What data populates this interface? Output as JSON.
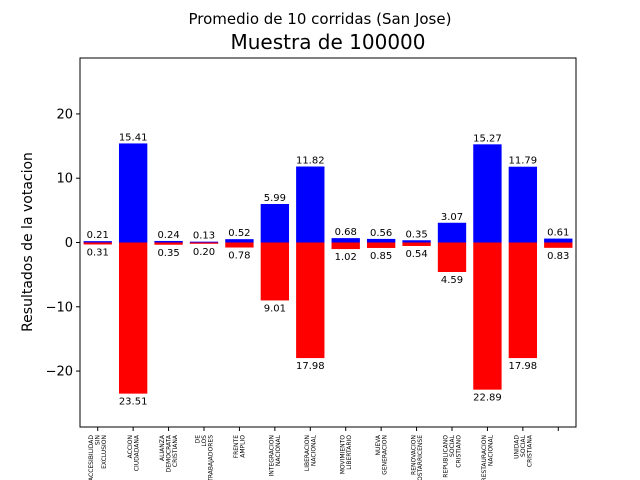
{
  "chart_data": {
    "type": "bar",
    "suptitle": "Promedio de 10 corridas (San Jose)",
    "title": "Muestra de 100000",
    "ylabel": "Resultados de la votacion",
    "xlabel": "",
    "ylim": [
      -28.7,
      28.7
    ],
    "yticks": [
      -20,
      -10,
      0,
      10,
      20
    ],
    "ytick_labels": [
      "−20",
      "−10",
      "0",
      "10",
      "20"
    ],
    "categories": [
      [
        "ACCESIBILIDAD",
        "SIN",
        "EXCLUSION"
      ],
      [
        "ACCION",
        "CIUDADANA"
      ],
      [
        "ALIANZA",
        "DEMOCRATA",
        "CRISTIANA"
      ],
      [
        "DE",
        "LOS",
        "TRABAJADORES"
      ],
      [
        "FRENTE",
        "AMPLIO"
      ],
      [
        "INTEGRACION",
        "NACIONAL"
      ],
      [
        "LIBERACION",
        "NACIONAL"
      ],
      [
        "MOVIMIENTO",
        "LIBERTARIO"
      ],
      [
        "NUEVA",
        "GENERACION"
      ],
      [
        "RENOVACION",
        "COSTARRICENSE"
      ],
      [
        "REPUBLICANO",
        "SOCIAL",
        "CRISTIANO"
      ],
      [
        "RESTAURACION",
        "NACIONAL"
      ],
      [
        "UNIDAD",
        "SOCIAL",
        "CRISTIANA"
      ],
      []
    ],
    "series": [
      {
        "color": "#0000ff",
        "values": [
          0.21,
          15.41,
          0.24,
          0.13,
          0.52,
          5.99,
          11.82,
          0.68,
          0.56,
          0.35,
          3.07,
          15.27,
          11.79,
          0.61
        ]
      },
      {
        "color": "#ff0000",
        "values": [
          -0.31,
          -23.51,
          -0.35,
          -0.2,
          -0.78,
          -9.01,
          -17.98,
          -1.02,
          -0.85,
          -0.54,
          -4.59,
          -22.89,
          -17.98,
          -0.83
        ]
      }
    ],
    "pos_labels": [
      "0.21",
      "15.41",
      "0.24",
      "0.13",
      "0.52",
      "5.99",
      "11.82",
      "0.68",
      "0.56",
      "0.35",
      "3.07",
      "15.27",
      "11.79",
      "0.61"
    ],
    "neg_labels": [
      "0.31",
      "23.51",
      "0.35",
      "0.20",
      "0.78",
      "9.01",
      "17.98",
      "1.02",
      "0.85",
      "0.54",
      "4.59",
      "22.89",
      "17.98",
      "0.83"
    ],
    "grid": false,
    "legend": "none"
  }
}
